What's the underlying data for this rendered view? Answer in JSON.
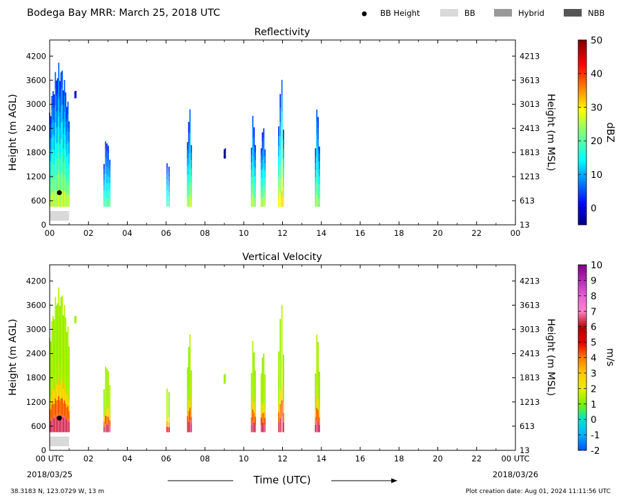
{
  "header": {
    "title": "Bodega Bay MRR:  March 25, 2018 UTC",
    "legend": [
      {
        "label": "BB Height",
        "kind": "dot",
        "color": "#000000"
      },
      {
        "label": "BB",
        "kind": "box",
        "color": "#d9d9d9"
      },
      {
        "label": "Hybrid",
        "kind": "box",
        "color": "#999999"
      },
      {
        "label": "NBB",
        "kind": "box",
        "color": "#555555"
      }
    ]
  },
  "footer": {
    "location": "38.3183 N, 123.0729 W, 13 m",
    "created": "Plot creation date: Aug 01, 2024 11:11:56 UTC",
    "xlabel": "Time (UTC)",
    "start_date": "2018/03/25",
    "end_date": "2018/03/26"
  },
  "chart_data": [
    {
      "type": "heatmap",
      "title": "Reflectivity",
      "ylabel": "Height (m AGL)",
      "y2label": "Height (m MSL)",
      "xlim": [
        0,
        24
      ],
      "ylim": [
        0,
        4600
      ],
      "x_ticks": [
        "00",
        "02",
        "04",
        "06",
        "08",
        "10",
        "12",
        "14",
        "16",
        "18",
        "20",
        "22",
        "00"
      ],
      "y_ticks": [
        "0",
        "600",
        "1200",
        "1800",
        "2400",
        "3000",
        "3600",
        "4200"
      ],
      "y2_ticks": [
        "13",
        "613",
        "1213",
        "1813",
        "2413",
        "3013",
        "3613",
        "4213"
      ],
      "colorbar": {
        "label": "dBZ",
        "min": -5,
        "max": 50,
        "ticks": [
          "0",
          "10",
          "20",
          "30",
          "40",
          "50"
        ],
        "cmap": "jet"
      },
      "bb_height": [
        {
          "x": 0.5,
          "y": 800
        }
      ],
      "bb_bar": {
        "x_start": 0.0,
        "x_end": 1.0
      },
      "echoes": [
        {
          "x_start": 0.0,
          "x_end": 1.0,
          "bottom": 450,
          "top": 4050,
          "peak": 28
        },
        {
          "x_start": 1.3,
          "x_end": 1.35,
          "bottom": 3150,
          "top": 3450,
          "peak": 0
        },
        {
          "x_start": 2.8,
          "x_end": 3.1,
          "bottom": 450,
          "top": 2250,
          "peak": 22
        },
        {
          "x_start": 6.05,
          "x_end": 6.15,
          "bottom": 450,
          "top": 2100,
          "peak": 20
        },
        {
          "x_start": 7.1,
          "x_end": 7.3,
          "bottom": 450,
          "top": 3000,
          "peak": 28
        },
        {
          "x_start": 9.0,
          "x_end": 9.05,
          "bottom": 1650,
          "top": 2050,
          "peak": -3
        },
        {
          "x_start": 10.4,
          "x_end": 10.6,
          "bottom": 450,
          "top": 2850,
          "peak": 27
        },
        {
          "x_start": 10.9,
          "x_end": 11.1,
          "bottom": 450,
          "top": 2650,
          "peak": 28
        },
        {
          "x_start": 11.8,
          "x_end": 12.05,
          "bottom": 450,
          "top": 3750,
          "peak": 33
        },
        {
          "x_start": 13.7,
          "x_end": 13.9,
          "bottom": 450,
          "top": 3000,
          "peak": 25
        }
      ]
    },
    {
      "type": "heatmap",
      "title": "Vertical Velocity",
      "ylabel": "Height (m AGL)",
      "y2label": "Height (m MSL)",
      "xlim": [
        0,
        24
      ],
      "ylim": [
        0,
        4600
      ],
      "x_ticks": [
        "00 UTC",
        "02",
        "04",
        "06",
        "08",
        "10",
        "12",
        "14",
        "16",
        "18",
        "20",
        "22",
        "00 UTC"
      ],
      "y_ticks": [
        "0",
        "600",
        "1200",
        "1800",
        "2400",
        "3000",
        "3600",
        "4200"
      ],
      "y2_ticks": [
        "13",
        "613",
        "1213",
        "1813",
        "2413",
        "3013",
        "3613",
        "4213"
      ],
      "colorbar": {
        "label": "m/s",
        "min": -2,
        "max": 10,
        "ticks": [
          "-2",
          "-1",
          "0",
          "1",
          "2",
          "3",
          "4",
          "5",
          "6",
          "7",
          "8",
          "9",
          "10"
        ],
        "cmap": "velocity"
      },
      "bb_height": [
        {
          "x": 0.5,
          "y": 800
        }
      ],
      "bb_bar": {
        "x_start": 0.0,
        "x_end": 1.0
      },
      "echoes": [
        {
          "x_start": 0.0,
          "x_end": 1.0,
          "bottom": 450,
          "top": 4050,
          "peak": 6.5
        },
        {
          "x_start": 1.3,
          "x_end": 1.35,
          "bottom": 3150,
          "top": 3450,
          "peak": 1.5
        },
        {
          "x_start": 2.8,
          "x_end": 3.1,
          "bottom": 450,
          "top": 2250,
          "peak": 6.5
        },
        {
          "x_start": 6.05,
          "x_end": 6.15,
          "bottom": 450,
          "top": 2100,
          "peak": 5
        },
        {
          "x_start": 7.1,
          "x_end": 7.3,
          "bottom": 450,
          "top": 3000,
          "peak": 6.5
        },
        {
          "x_start": 9.0,
          "x_end": 9.05,
          "bottom": 1650,
          "top": 2050,
          "peak": 1.5
        },
        {
          "x_start": 10.4,
          "x_end": 10.6,
          "bottom": 450,
          "top": 2850,
          "peak": 6.5
        },
        {
          "x_start": 10.9,
          "x_end": 11.1,
          "bottom": 450,
          "top": 2650,
          "peak": 6.5
        },
        {
          "x_start": 11.8,
          "x_end": 12.05,
          "bottom": 450,
          "top": 3750,
          "peak": 6.5
        },
        {
          "x_start": 13.7,
          "x_end": 13.9,
          "bottom": 450,
          "top": 3000,
          "peak": 6.5
        }
      ]
    }
  ]
}
